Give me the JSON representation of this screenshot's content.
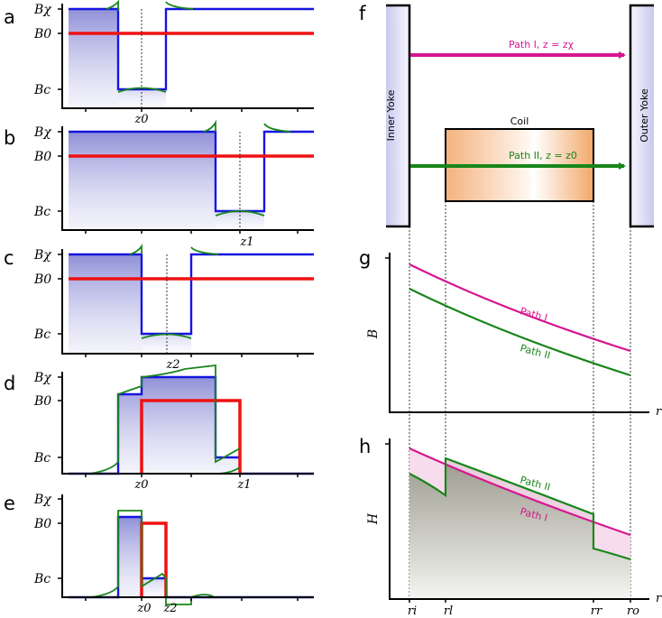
{
  "panels_left": [
    {
      "label": "a",
      "yticks": [
        "Bχ",
        "B0",
        "Bc"
      ],
      "xticks": [
        "z0"
      ]
    },
    {
      "label": "b",
      "yticks": [
        "Bχ",
        "B0",
        "Bc"
      ],
      "xticks": [
        "z1"
      ]
    },
    {
      "label": "c",
      "yticks": [
        "Bχ",
        "B0",
        "Bc"
      ],
      "xticks": [
        "z2"
      ]
    },
    {
      "label": "d",
      "yticks": [
        "Bχ",
        "B0",
        "Bc"
      ],
      "xticks": [
        "z0",
        "z1"
      ]
    },
    {
      "label": "e",
      "yticks": [
        "Bχ",
        "B0",
        "Bc"
      ],
      "xticks": [
        "z0",
        "z2"
      ]
    }
  ],
  "panel_f": {
    "label": "f",
    "inner_yoke": "Inner Yoke",
    "outer_yoke": "Outer Yoke",
    "coil": "Coil",
    "path1": "Path I, z = zχ",
    "path2": "Path II, z = z0"
  },
  "panel_g": {
    "label": "g",
    "ylabel": "B",
    "xlabel": "r",
    "series": [
      "Path I",
      "Path II"
    ]
  },
  "panel_h": {
    "label": "h",
    "ylabel": "H",
    "xlabel": "r",
    "series": [
      "Path II",
      "Path I"
    ],
    "xticks": [
      "ri",
      "rl",
      "rr",
      "ro"
    ]
  },
  "colors": {
    "path1": "#d6168f",
    "path2": "#18861a",
    "blue": "#1515e0",
    "red": "#ee1111",
    "green": "#18861a"
  }
}
